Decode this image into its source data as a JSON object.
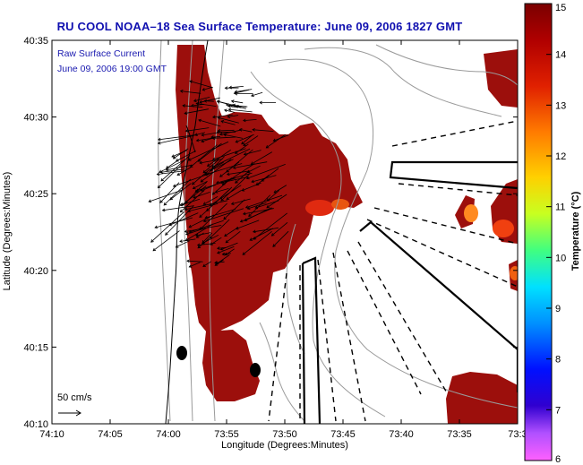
{
  "title": "RU COOL  NOAA–18  Sea Surface Temperature:  June 09, 2006 1827 GMT",
  "overlay": {
    "line1": "Raw Surface Current",
    "line2": "June 09, 2006 19:00 GMT",
    "scale_label": "50 cm/s"
  },
  "axes": {
    "xlabel": "Longitude (Degrees:Minutes)",
    "ylabel": "Latitude (Degrees:Minutes)",
    "x_ticks": [
      "74:10",
      "74:05",
      "74:00",
      "73:55",
      "73:50",
      "73:45",
      "73:40",
      "73:35",
      "73:3"
    ],
    "y_ticks": [
      "40:35",
      "40:30",
      "40:25",
      "40:20",
      "40:15",
      "40:10"
    ]
  },
  "colorbar": {
    "label": "Temperature (°C)",
    "ticks": [
      "15",
      "14",
      "13",
      "12",
      "11",
      "10",
      "9",
      "8",
      "7",
      "6"
    ],
    "range": [
      6,
      15
    ]
  },
  "colors": {
    "sst_warm": "#9c0f0c",
    "land": "#ffffff",
    "title_blue": "#1010b0"
  }
}
